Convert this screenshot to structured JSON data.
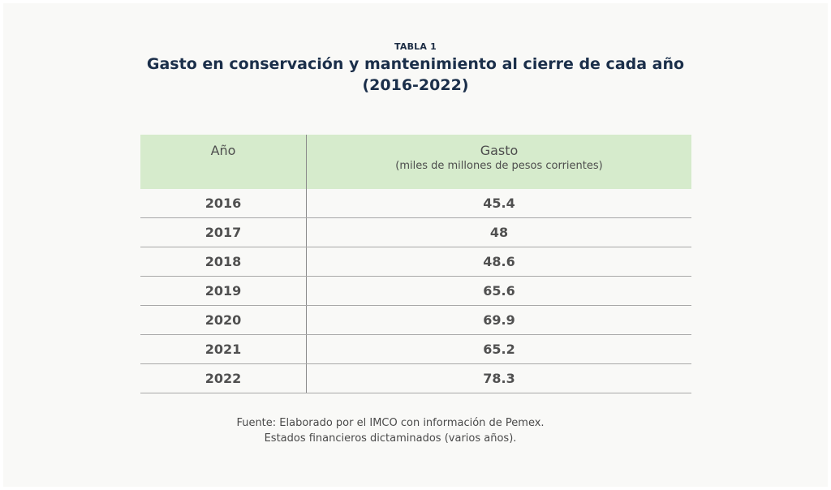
{
  "table_label": "TABLA 1",
  "title": {
    "line1": "Gasto en conservación y mantenimiento al cierre de cada año",
    "line2": "(2016-2022)"
  },
  "table": {
    "headers": {
      "year": "Año",
      "gasto": "Gasto",
      "gasto_units": "(miles de millones de pesos corrientes)"
    },
    "rows": [
      {
        "year": "2016",
        "value": "45.4"
      },
      {
        "year": "2017",
        "value": "48"
      },
      {
        "year": "2018",
        "value": "48.6"
      },
      {
        "year": "2019",
        "value": "65.6"
      },
      {
        "year": "2020",
        "value": "69.9"
      },
      {
        "year": "2021",
        "value": "65.2"
      },
      {
        "year": "2022",
        "value": "78.3"
      }
    ]
  },
  "source": {
    "line1": "Fuente: Elaborado por el IMCO con información de Pemex.",
    "line2": "Estados financieros dictaminados (varios años)."
  },
  "colors": {
    "header_bg": "#d6ebcc",
    "title": "#1b2f4a",
    "page_bg": "#f9f9f7"
  }
}
